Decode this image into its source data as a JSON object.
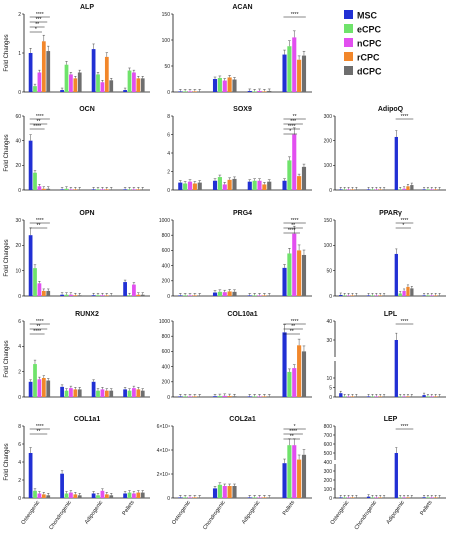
{
  "legend": [
    {
      "name": "MSC",
      "color": "#2130d4"
    },
    {
      "name": "eCPC",
      "color": "#6fe36b"
    },
    {
      "name": "nCPC",
      "color": "#e24ff0"
    },
    {
      "name": "rCPC",
      "color": "#f2872b"
    },
    {
      "name": "dCPC",
      "color": "#6e6e6e"
    }
  ],
  "colors": {
    "MSC": "#2130d4",
    "eCPC": "#6fe36b",
    "nCPC": "#e24ff0",
    "rCPC": "#f2872b",
    "dCPC": "#6e6e6e"
  },
  "chart_data": [
    {
      "type": "bar",
      "title": "ALP",
      "ylabel": "Fold Changes",
      "ylim": [
        0,
        2
      ],
      "yticks": [
        "0",
        "1",
        "2"
      ],
      "ytick_values": [
        0,
        1,
        2
      ],
      "col": 0,
      "row": 0,
      "categories": [
        "Osteogenic",
        "Chondrogenic",
        "Adipogenic",
        "Pellets"
      ],
      "show_xlabels": false,
      "series": [
        {
          "name": "MSC",
          "values": [
            1.0,
            0.05,
            1.1,
            0.05
          ]
        },
        {
          "name": "eCPC",
          "values": [
            0.15,
            0.7,
            0.45,
            0.55
          ]
        },
        {
          "name": "nCPC",
          "values": [
            0.5,
            0.45,
            0.25,
            0.5
          ]
        },
        {
          "name": "rCPC",
          "values": [
            1.3,
            0.35,
            0.9,
            0.35
          ]
        },
        {
          "name": "dCPC",
          "values": [
            1.05,
            0.5,
            0.3,
            0.35
          ]
        }
      ],
      "annotations": [
        "****",
        "***",
        "**",
        "*"
      ]
    },
    {
      "type": "bar",
      "title": "ACAN",
      "ylim": [
        0,
        150
      ],
      "yticks": [
        "0",
        "50",
        "100",
        "150"
      ],
      "ytick_values": [
        0,
        50,
        100,
        150
      ],
      "col": 1,
      "row": 0,
      "categories": [
        "Osteogenic",
        "Chondrogenic",
        "Adipogenic",
        "Pellets"
      ],
      "show_xlabels": false,
      "series": [
        {
          "name": "MSC",
          "values": [
            1,
            25,
            2,
            72
          ]
        },
        {
          "name": "eCPC",
          "values": [
            1,
            27,
            1,
            88
          ]
        },
        {
          "name": "nCPC",
          "values": [
            1,
            22,
            2,
            105
          ]
        },
        {
          "name": "rCPC",
          "values": [
            1,
            28,
            1,
            62
          ]
        },
        {
          "name": "dCPC",
          "values": [
            1,
            24,
            2,
            70
          ]
        }
      ],
      "annotations": [
        "****"
      ]
    },
    {
      "type": "bar",
      "title": "OCN",
      "ylabel": "Fold Changes",
      "ylim": [
        0,
        60
      ],
      "yticks": [
        "0",
        "20",
        "40",
        "60"
      ],
      "ytick_values": [
        0,
        20,
        40,
        60
      ],
      "col": 0,
      "row": 1,
      "categories": [
        "Osteogenic",
        "Chondrogenic",
        "Adipogenic",
        "Pellets"
      ],
      "show_xlabels": false,
      "series": [
        {
          "name": "MSC",
          "values": [
            40,
            0.5,
            0.5,
            0.5
          ]
        },
        {
          "name": "eCPC",
          "values": [
            14,
            1,
            0.5,
            0.5
          ]
        },
        {
          "name": "nCPC",
          "values": [
            3,
            0.5,
            0.5,
            0.5
          ]
        },
        {
          "name": "rCPC",
          "values": [
            1,
            0.5,
            0.5,
            0.5
          ]
        },
        {
          "name": "dCPC",
          "values": [
            1,
            0.5,
            0.5,
            0.5
          ]
        }
      ],
      "annotations": [
        "****",
        "**",
        "****"
      ]
    },
    {
      "type": "bar",
      "title": "SOX9",
      "ylim": [
        0,
        8
      ],
      "yticks": [
        "0",
        "2",
        "4",
        "6",
        "8"
      ],
      "ytick_values": [
        0,
        2,
        4,
        6,
        8
      ],
      "col": 1,
      "row": 1,
      "categories": [
        "Osteogenic",
        "Chondrogenic",
        "Adipogenic",
        "Pellets"
      ],
      "show_xlabels": false,
      "series": [
        {
          "name": "MSC",
          "values": [
            0.8,
            1.0,
            0.9,
            1.0
          ]
        },
        {
          "name": "eCPC",
          "values": [
            0.7,
            1.4,
            1.0,
            3.2
          ]
        },
        {
          "name": "nCPC",
          "values": [
            0.9,
            0.6,
            1.0,
            6.0
          ]
        },
        {
          "name": "rCPC",
          "values": [
            0.7,
            1.1,
            0.6,
            1.5
          ]
        },
        {
          "name": "dCPC",
          "values": [
            0.8,
            1.2,
            0.9,
            2.5
          ]
        }
      ],
      "annotations": [
        "**",
        "***",
        "****",
        "*"
      ]
    },
    {
      "type": "bar",
      "title": "AdipoQ",
      "ylim": [
        0,
        300
      ],
      "yticks": [
        "0",
        "100",
        "200",
        "300"
      ],
      "ytick_values": [
        0,
        100,
        200,
        300
      ],
      "col": 2,
      "row": 1,
      "categories": [
        "Osteogenic",
        "Chondrogenic",
        "Adipogenic",
        "Pellets"
      ],
      "show_xlabels": false,
      "series": [
        {
          "name": "MSC",
          "values": [
            2,
            1,
            215,
            1
          ]
        },
        {
          "name": "eCPC",
          "values": [
            1,
            1,
            3,
            1
          ]
        },
        {
          "name": "nCPC",
          "values": [
            2,
            1,
            5,
            1
          ]
        },
        {
          "name": "rCPC",
          "values": [
            1,
            1,
            15,
            1
          ]
        },
        {
          "name": "dCPC",
          "values": [
            1,
            1,
            20,
            1
          ]
        }
      ],
      "annotations": [
        "****"
      ]
    },
    {
      "type": "bar",
      "title": "OPN",
      "ylabel": "Fold Changes",
      "ylim": [
        0,
        30
      ],
      "yticks": [
        "0",
        "10",
        "20",
        "30"
      ],
      "ytick_values": [
        0,
        10,
        20,
        30
      ],
      "col": 0,
      "row": 2,
      "categories": [
        "Osteogenic",
        "Chondrogenic",
        "Adipogenic",
        "Pellets"
      ],
      "show_xlabels": false,
      "series": [
        {
          "name": "MSC",
          "values": [
            24,
            0.5,
            0.3,
            5.5
          ]
        },
        {
          "name": "eCPC",
          "values": [
            11,
            0.5,
            0.3,
            0.3
          ]
        },
        {
          "name": "nCPC",
          "values": [
            5,
            0.5,
            0.3,
            4.5
          ]
        },
        {
          "name": "rCPC",
          "values": [
            2,
            0.3,
            0.2,
            0.5
          ]
        },
        {
          "name": "dCPC",
          "values": [
            2,
            0.3,
            0.2,
            0.5
          ]
        }
      ],
      "annotations": [
        "****",
        "**"
      ]
    },
    {
      "type": "bar",
      "title": "PRG4",
      "ylim": [
        0,
        1000
      ],
      "yticks": [
        "0",
        "200",
        "400",
        "600",
        "800",
        "1000"
      ],
      "ytick_values": [
        0,
        200,
        400,
        600,
        800,
        1000
      ],
      "col": 1,
      "row": 2,
      "categories": [
        "Osteogenic",
        "Chondrogenic",
        "Adipogenic",
        "Pellets"
      ],
      "show_xlabels": false,
      "series": [
        {
          "name": "MSC",
          "values": [
            5,
            45,
            3,
            370
          ]
        },
        {
          "name": "eCPC",
          "values": [
            5,
            55,
            3,
            560
          ]
        },
        {
          "name": "nCPC",
          "values": [
            5,
            50,
            3,
            820
          ]
        },
        {
          "name": "rCPC",
          "values": [
            5,
            60,
            3,
            600
          ]
        },
        {
          "name": "dCPC",
          "values": [
            5,
            55,
            3,
            540
          ]
        }
      ],
      "annotations": [
        "****",
        "**",
        "****"
      ]
    },
    {
      "type": "bar",
      "title": "PPARγ",
      "ylim": [
        0,
        150
      ],
      "yticks": [
        "0",
        "50",
        "100",
        "150"
      ],
      "ytick_values": [
        0,
        50,
        100,
        150
      ],
      "col": 2,
      "row": 2,
      "categories": [
        "Osteogenic",
        "Chondrogenic",
        "Adipogenic",
        "Pellets"
      ],
      "show_xlabels": false,
      "series": [
        {
          "name": "MSC",
          "values": [
            2,
            1,
            83,
            1
          ]
        },
        {
          "name": "eCPC",
          "values": [
            1,
            1,
            5,
            1
          ]
        },
        {
          "name": "nCPC",
          "values": [
            1,
            1,
            10,
            1
          ]
        },
        {
          "name": "rCPC",
          "values": [
            1,
            1,
            18,
            1
          ]
        },
        {
          "name": "dCPC",
          "values": [
            1,
            1,
            15,
            1
          ]
        }
      ],
      "annotations": [
        "****",
        "*"
      ]
    },
    {
      "type": "bar",
      "title": "RUNX2",
      "ylabel": "Fold Changes",
      "ylim": [
        0,
        6
      ],
      "yticks": [
        "0",
        "2",
        "4",
        "6"
      ],
      "ytick_values": [
        0,
        2,
        4,
        6
      ],
      "col": 0,
      "row": 3,
      "categories": [
        "Osteogenic",
        "Chondrogenic",
        "Adipogenic",
        "Pellets"
      ],
      "show_xlabels": false,
      "series": [
        {
          "name": "MSC",
          "values": [
            1.2,
            0.8,
            1.2,
            0.6
          ]
        },
        {
          "name": "eCPC",
          "values": [
            2.6,
            0.5,
            0.5,
            0.5
          ]
        },
        {
          "name": "nCPC",
          "values": [
            1.4,
            0.7,
            0.6,
            0.7
          ]
        },
        {
          "name": "rCPC",
          "values": [
            1.5,
            0.6,
            0.5,
            0.6
          ]
        },
        {
          "name": "dCPC",
          "values": [
            1.3,
            0.6,
            0.5,
            0.5
          ]
        }
      ],
      "annotations": [
        "****",
        "**",
        "****"
      ]
    },
    {
      "type": "bar",
      "title": "COL10a1",
      "ylim": [
        0,
        1000
      ],
      "yticks": [
        "0",
        "200",
        "400",
        "600",
        "800",
        "1000"
      ],
      "ytick_values": [
        0,
        200,
        400,
        600,
        800,
        1000
      ],
      "col": 1,
      "row": 3,
      "categories": [
        "Osteogenic",
        "Chondrogenic",
        "Adipogenic",
        "Pellets"
      ],
      "show_xlabels": false,
      "series": [
        {
          "name": "MSC",
          "values": [
            5,
            10,
            3,
            850
          ]
        },
        {
          "name": "eCPC",
          "values": [
            5,
            12,
            3,
            330
          ]
        },
        {
          "name": "nCPC",
          "values": [
            5,
            15,
            3,
            380
          ]
        },
        {
          "name": "rCPC",
          "values": [
            5,
            12,
            3,
            680
          ]
        },
        {
          "name": "dCPC",
          "values": [
            5,
            10,
            3,
            600
          ]
        }
      ],
      "annotations": [
        "****",
        "**",
        "**"
      ]
    },
    {
      "type": "bar",
      "title": "LPL",
      "ylim": [
        0,
        40
      ],
      "yticks": [
        "0",
        "5",
        "10",
        "30",
        "40"
      ],
      "ytick_values": [
        0,
        5,
        10,
        30,
        40
      ],
      "broken": true,
      "col": 2,
      "row": 3,
      "categories": [
        "Osteogenic",
        "Chondrogenic",
        "Adipogenic",
        "Pellets"
      ],
      "show_xlabels": false,
      "series": [
        {
          "name": "MSC",
          "values": [
            2,
            0.2,
            30,
            1
          ]
        },
        {
          "name": "eCPC",
          "values": [
            0.1,
            0.1,
            0.1,
            0.1
          ]
        },
        {
          "name": "nCPC",
          "values": [
            0.1,
            0.1,
            0.1,
            0.1
          ]
        },
        {
          "name": "rCPC",
          "values": [
            0.1,
            0.1,
            0.1,
            0.1
          ]
        },
        {
          "name": "dCPC",
          "values": [
            0.1,
            0.1,
            0.1,
            0.1
          ]
        }
      ],
      "annotations": [
        "****"
      ]
    },
    {
      "type": "bar",
      "title": "COL1a1",
      "ylabel": "Fold Changes",
      "ylim": [
        0,
        8
      ],
      "yticks": [
        "0",
        "2",
        "4",
        "6",
        "8"
      ],
      "ytick_values": [
        0,
        2,
        4,
        6,
        8
      ],
      "col": 0,
      "row": 4,
      "categories": [
        "Osteogenic",
        "Chondrogenic",
        "Adipogenic",
        "Pellets"
      ],
      "show_xlabels": true,
      "series": [
        {
          "name": "MSC",
          "values": [
            5,
            2.7,
            0.5,
            0.5
          ]
        },
        {
          "name": "eCPC",
          "values": [
            0.8,
            0.5,
            0.3,
            0.6
          ]
        },
        {
          "name": "nCPC",
          "values": [
            0.5,
            0.6,
            0.8,
            0.5
          ]
        },
        {
          "name": "rCPC",
          "values": [
            0.4,
            0.4,
            0.4,
            0.6
          ]
        },
        {
          "name": "dCPC",
          "values": [
            0.3,
            0.3,
            0.3,
            0.6
          ]
        }
      ],
      "annotations": [
        "****",
        "**"
      ]
    },
    {
      "type": "bar",
      "title": "COL2a1",
      "ylim": [
        0,
        60000
      ],
      "yticks": [
        "0",
        "2×10⁴",
        "4×10⁴",
        "6×10⁴"
      ],
      "ytick_values": [
        0,
        20000,
        40000,
        60000
      ],
      "col": 1,
      "row": 4,
      "categories": [
        "Osteogenic",
        "Chondrogenic",
        "Adipogenic",
        "Pellets"
      ],
      "show_xlabels": true,
      "series": [
        {
          "name": "MSC",
          "values": [
            100,
            8000,
            100,
            29000
          ]
        },
        {
          "name": "eCPC",
          "values": [
            100,
            11000,
            100,
            44000
          ]
        },
        {
          "name": "nCPC",
          "values": [
            100,
            10000,
            100,
            44000
          ]
        },
        {
          "name": "rCPC",
          "values": [
            100,
            10000,
            100,
            32000
          ]
        },
        {
          "name": "dCPC",
          "values": [
            100,
            10000,
            100,
            36000
          ]
        }
      ],
      "annotations": [
        "*",
        "****",
        "**"
      ]
    },
    {
      "type": "bar",
      "title": "LEP",
      "ylim": [
        0,
        800
      ],
      "yticks": [
        "0",
        "100",
        "200",
        "300",
        "400",
        "500",
        "600",
        "700",
        "800"
      ],
      "ytick_values": [
        0,
        100,
        200,
        300,
        400,
        500,
        600,
        700,
        800
      ],
      "broken": true,
      "col": 2,
      "row": 4,
      "categories": [
        "Osteogenic",
        "Chondrogenic",
        "Adipogenic",
        "Pellets"
      ],
      "show_xlabels": true,
      "series": [
        {
          "name": "MSC",
          "values": [
            5,
            15,
            500,
            8
          ]
        },
        {
          "name": "eCPC",
          "values": [
            0.5,
            0.5,
            0.5,
            0.5
          ]
        },
        {
          "name": "nCPC",
          "values": [
            0.5,
            0.5,
            0.5,
            0.5
          ]
        },
        {
          "name": "rCPC",
          "values": [
            0.5,
            0.5,
            0.5,
            0.5
          ]
        },
        {
          "name": "dCPC",
          "values": [
            0.5,
            0.5,
            0.5,
            0.5
          ]
        }
      ],
      "annotations": [
        "****"
      ]
    }
  ]
}
